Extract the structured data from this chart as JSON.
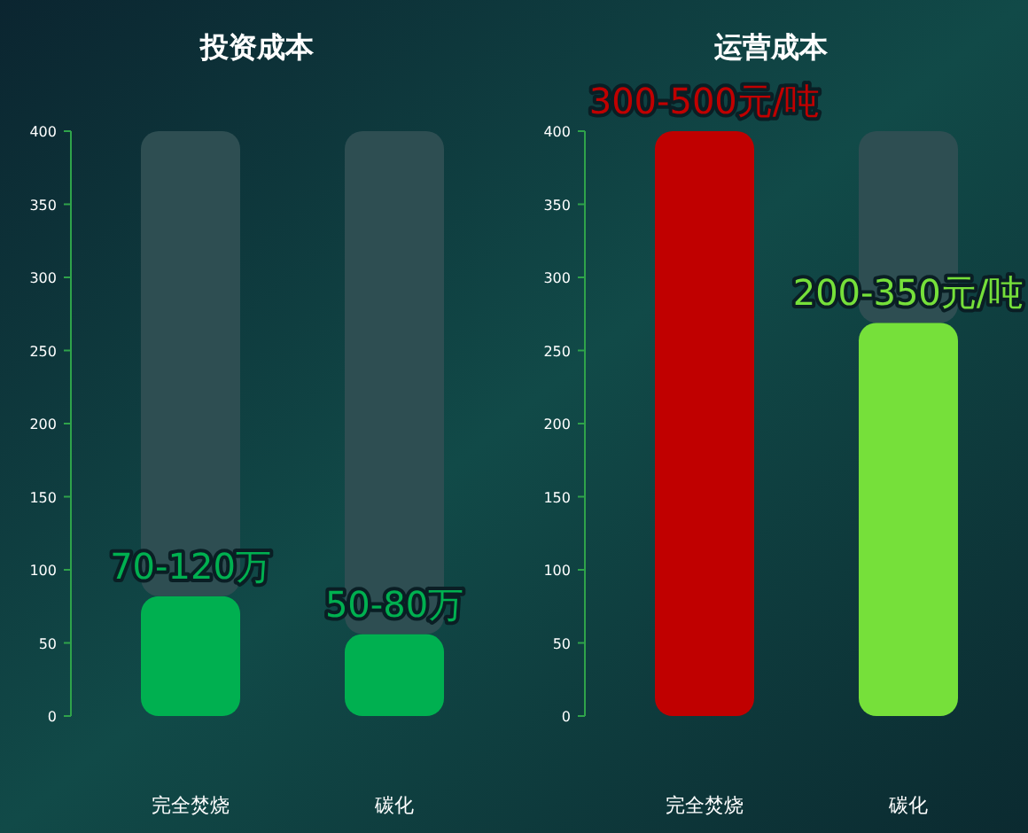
{
  "chart_data": [
    {
      "type": "bar",
      "title": "投资成本",
      "categories": [
        "完全焚烧",
        "碳化"
      ],
      "stacked": true,
      "ylim": [
        0,
        400
      ],
      "yticks": [
        0,
        50,
        100,
        150,
        200,
        250,
        300,
        350,
        400
      ],
      "grid": false,
      "series": [
        {
          "colors": [
            "#00b050",
            "#00b050"
          ],
          "values": [
            82,
            56
          ],
          "value_labels": [
            "70-120万",
            "50-80万"
          ]
        },
        {
          "color": "#2e4e52",
          "values": [
            318,
            344
          ]
        }
      ]
    },
    {
      "type": "bar",
      "title": "运营成本",
      "categories": [
        "完全焚烧",
        "碳化"
      ],
      "stacked": true,
      "ylim": [
        0,
        400
      ],
      "yticks": [
        0,
        50,
        100,
        150,
        200,
        250,
        300,
        350,
        400
      ],
      "grid": false,
      "series": [
        {
          "colors": [
            "#c00000",
            "#76e03a"
          ],
          "values": [
            400,
            269
          ],
          "value_labels": [
            "300-500元/吨",
            "200-350元/吨"
          ]
        },
        {
          "color": "#2e4e52",
          "values": [
            0,
            131
          ]
        }
      ]
    }
  ]
}
